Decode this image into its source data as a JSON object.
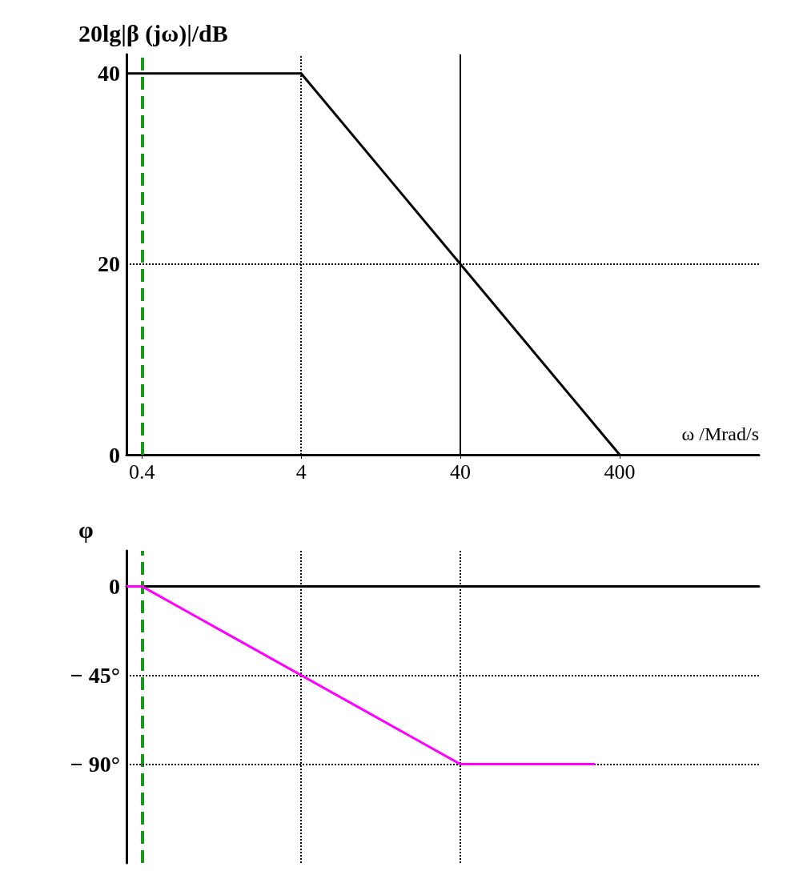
{
  "chart_data": [
    {
      "type": "line",
      "ylabel": "20lg|β (jω)|/dB",
      "xlabel": "ω /Mrad/s",
      "log": "x",
      "xlim": [
        0.32,
        3000
      ],
      "xticks": [
        0.4,
        4,
        40,
        400
      ],
      "ylim": [
        0,
        42
      ],
      "yticks": [
        0,
        20,
        40
      ],
      "marker": "none",
      "line_style": "solid",
      "series": [
        {
          "color": "#000000",
          "x": [
            0.32,
            4,
            400
          ],
          "values": [
            40,
            40,
            0
          ]
        }
      ],
      "ref_lines": [
        {
          "axis": "x",
          "value": 0.4,
          "color": "#1a9a1a",
          "line_style": "dashed"
        },
        {
          "axis": "x",
          "value": 4,
          "color": "#000000",
          "line_style": "dotted"
        },
        {
          "axis": "x",
          "value": 40,
          "color": "#000000",
          "line_style": "solid"
        },
        {
          "axis": "y",
          "value": 20,
          "color": "#000000",
          "line_style": "dotted"
        }
      ]
    },
    {
      "type": "line",
      "ylabel": "φ",
      "log": "x",
      "xlim": [
        0.32,
        3000
      ],
      "ylim": [
        -140,
        18
      ],
      "yticks": [
        0,
        {
          "value": -45,
          "label": "− 45°"
        },
        {
          "value": -90,
          "label": "− 90°"
        }
      ],
      "tick_labels": "y",
      "marker": "none",
      "line_style": "solid",
      "series": [
        {
          "color": "#ff00ff",
          "x": [
            0.32,
            0.4,
            40,
            280
          ],
          "values": [
            0,
            0,
            -90,
            -90
          ]
        }
      ],
      "ref_lines": [
        {
          "axis": "x",
          "value": 0.4,
          "color": "#1a9a1a",
          "line_style": "dashed"
        },
        {
          "axis": "x",
          "value": 4,
          "color": "#000000",
          "line_style": "dotted"
        },
        {
          "axis": "x",
          "value": 40,
          "color": "#000000",
          "line_style": "dotted"
        },
        {
          "axis": "y",
          "value": -45,
          "color": "#000000",
          "line_style": "dotted"
        },
        {
          "axis": "y",
          "value": -90,
          "color": "#000000",
          "line_style": "dotted"
        }
      ]
    }
  ]
}
